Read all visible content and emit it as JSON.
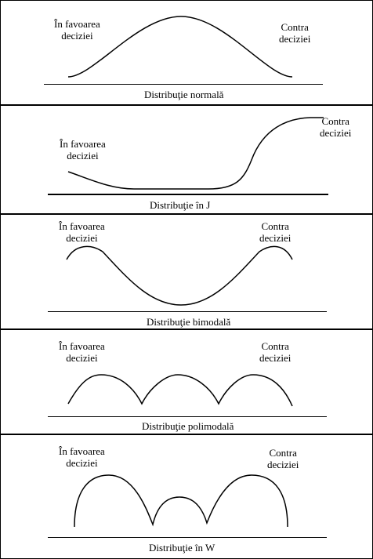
{
  "panels": [
    {
      "favor": [
        "În favoarea",
        "deciziei"
      ],
      "against": [
        "Contra",
        "deciziei"
      ],
      "caption": "Distribuţie normală"
    },
    {
      "favor": [
        "În favoarea",
        "deciziei"
      ],
      "against": [
        "Contra",
        "deciziei"
      ],
      "caption": "Distribuţie în J"
    },
    {
      "favor": [
        "În favoarea",
        "deciziei"
      ],
      "against": [
        "Contra",
        "deciziei"
      ],
      "caption": "Distribuţie bimodală"
    },
    {
      "favor": [
        "În favoarea",
        "deciziei"
      ],
      "against": [
        "Contra",
        "deciziei"
      ],
      "caption": "Distribuţie polimodală"
    },
    {
      "favor": [
        "În favoarea",
        "deciziei"
      ],
      "against": [
        "Contra",
        "deciziei"
      ],
      "caption": "Distribuţie în W"
    }
  ]
}
